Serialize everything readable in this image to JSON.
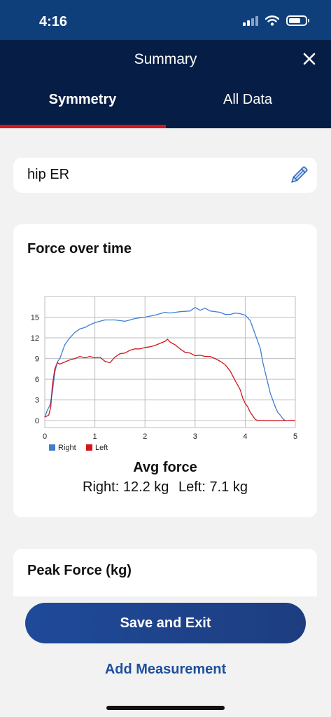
{
  "status_bar": {
    "time": "4:16",
    "icons": [
      "signal-icon",
      "wifi-icon",
      "battery-icon"
    ]
  },
  "header": {
    "title": "Summary",
    "close_icon": "close-icon"
  },
  "tabs": [
    {
      "label": "Symmetry",
      "selected": true
    },
    {
      "label": "All Data",
      "selected": false
    }
  ],
  "measurement_name": {
    "value": "hip ER",
    "edit_icon": "pencil-icon"
  },
  "force_card": {
    "title": "Force over time",
    "avg_title": "Avg force",
    "right_avg": "Right: 12.2 kg",
    "left_avg": "Left: 7.1 kg"
  },
  "chart_data": {
    "type": "line",
    "title": "",
    "xlabel": "",
    "ylabel": "",
    "xlim": [
      0,
      5
    ],
    "ylim": [
      -1,
      18
    ],
    "x_ticks": [
      "0",
      "1",
      "2",
      "3",
      "4",
      "5"
    ],
    "y_ticks": [
      "0",
      "3",
      "6",
      "9",
      "12",
      "15"
    ],
    "grid": true,
    "legend_position": "bottom-left",
    "series": [
      {
        "name": "Right",
        "color": "#3f7fd0",
        "points": [
          [
            0,
            0.5
          ],
          [
            0.05,
            1.5
          ],
          [
            0.1,
            2.2
          ],
          [
            0.15,
            4
          ],
          [
            0.2,
            7
          ],
          [
            0.25,
            8.5
          ],
          [
            0.3,
            9
          ],
          [
            0.35,
            10
          ],
          [
            0.4,
            11
          ],
          [
            0.5,
            12
          ],
          [
            0.6,
            12.8
          ],
          [
            0.7,
            13.3
          ],
          [
            0.8,
            13.5
          ],
          [
            0.9,
            13.9
          ],
          [
            1.0,
            14.2
          ],
          [
            1.1,
            14.4
          ],
          [
            1.2,
            14.6
          ],
          [
            1.4,
            14.6
          ],
          [
            1.6,
            14.4
          ],
          [
            1.7,
            14.6
          ],
          [
            1.8,
            14.8
          ],
          [
            2.0,
            15.0
          ],
          [
            2.2,
            15.3
          ],
          [
            2.4,
            15.7
          ],
          [
            2.5,
            15.6
          ],
          [
            2.7,
            15.8
          ],
          [
            2.9,
            15.9
          ],
          [
            3.0,
            16.4
          ],
          [
            3.1,
            16.0
          ],
          [
            3.2,
            16.3
          ],
          [
            3.3,
            15.9
          ],
          [
            3.5,
            15.7
          ],
          [
            3.6,
            15.4
          ],
          [
            3.7,
            15.4
          ],
          [
            3.8,
            15.6
          ],
          [
            3.9,
            15.5
          ],
          [
            4.0,
            15.3
          ],
          [
            4.1,
            14.5
          ],
          [
            4.2,
            12.5
          ],
          [
            4.3,
            10.5
          ],
          [
            4.35,
            8.5
          ],
          [
            4.4,
            7.0
          ],
          [
            4.45,
            5.5
          ],
          [
            4.5,
            4.0
          ],
          [
            4.55,
            3.0
          ],
          [
            4.6,
            2.0
          ],
          [
            4.65,
            1.2
          ],
          [
            4.7,
            0.8
          ],
          [
            4.75,
            0.3
          ],
          [
            4.8,
            0
          ]
        ]
      },
      {
        "name": "Left",
        "color": "#d4151c",
        "points": [
          [
            0,
            0.5
          ],
          [
            0.08,
            0.8
          ],
          [
            0.12,
            2
          ],
          [
            0.15,
            5
          ],
          [
            0.2,
            7.5
          ],
          [
            0.25,
            8.4
          ],
          [
            0.3,
            8.2
          ],
          [
            0.4,
            8.5
          ],
          [
            0.5,
            8.8
          ],
          [
            0.6,
            9.0
          ],
          [
            0.7,
            9.3
          ],
          [
            0.8,
            9.1
          ],
          [
            0.9,
            9.3
          ],
          [
            1.0,
            9.1
          ],
          [
            1.1,
            9.2
          ],
          [
            1.2,
            8.6
          ],
          [
            1.3,
            8.4
          ],
          [
            1.4,
            9.2
          ],
          [
            1.5,
            9.7
          ],
          [
            1.6,
            9.8
          ],
          [
            1.7,
            10.2
          ],
          [
            1.8,
            10.4
          ],
          [
            1.9,
            10.4
          ],
          [
            2.0,
            10.6
          ],
          [
            2.1,
            10.7
          ],
          [
            2.2,
            10.9
          ],
          [
            2.3,
            11.2
          ],
          [
            2.4,
            11.5
          ],
          [
            2.45,
            11.8
          ],
          [
            2.5,
            11.4
          ],
          [
            2.6,
            11.0
          ],
          [
            2.7,
            10.4
          ],
          [
            2.8,
            9.9
          ],
          [
            2.9,
            9.8
          ],
          [
            3.0,
            9.4
          ],
          [
            3.1,
            9.5
          ],
          [
            3.2,
            9.3
          ],
          [
            3.3,
            9.3
          ],
          [
            3.4,
            9.0
          ],
          [
            3.5,
            8.6
          ],
          [
            3.6,
            8.1
          ],
          [
            3.7,
            7.2
          ],
          [
            3.8,
            5.8
          ],
          [
            3.9,
            4.5
          ],
          [
            3.95,
            3.3
          ],
          [
            4.0,
            2.5
          ],
          [
            4.05,
            2.0
          ],
          [
            4.1,
            1.2
          ],
          [
            4.15,
            0.7
          ],
          [
            4.2,
            0.2
          ],
          [
            4.25,
            0
          ],
          [
            5.0,
            0
          ]
        ]
      }
    ]
  },
  "peak_card": {
    "title": "Peak Force (kg)"
  },
  "actions": {
    "save": "Save and Exit",
    "add": "Add Measurement"
  }
}
